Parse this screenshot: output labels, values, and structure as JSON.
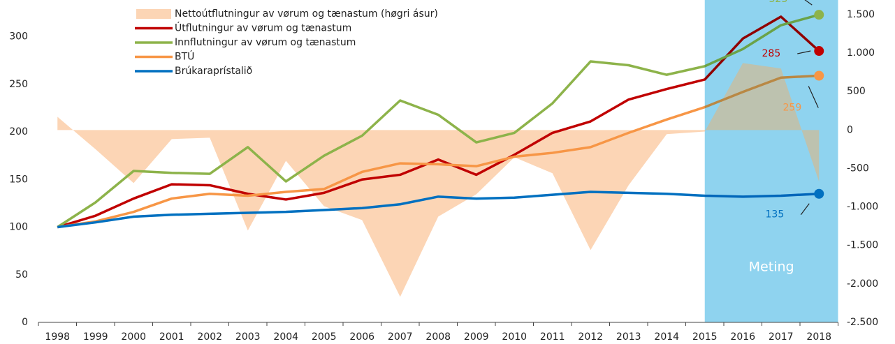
{
  "chart_data": {
    "type": "line",
    "categories": [
      "1998",
      "1999",
      "2000",
      "2001",
      "2002",
      "2003",
      "2004",
      "2005",
      "2006",
      "2007",
      "2008",
      "2009",
      "2010",
      "2011",
      "2012",
      "2013",
      "2014",
      "2015",
      "2016",
      "2017",
      "2018"
    ],
    "series": [
      {
        "name": "Nettoútflutningur av vørum og tænastum (høgri ásur)",
        "type": "area",
        "axis": "y2",
        "color": "#fcd5b5",
        "values": [
          172,
          -250,
          -690,
          -118,
          -100,
          -1306,
          -400,
          -990,
          -1170,
          -2168,
          -1125,
          -835,
          -354,
          -562,
          -1560,
          -717,
          -54,
          -20,
          870,
          800,
          -670
        ]
      },
      {
        "name": "Útflutningur av vørum og tænastum",
        "color": "#c00000",
        "values": [
          100,
          112,
          130,
          145,
          144,
          135,
          129,
          136,
          150,
          155,
          171,
          155,
          176,
          199,
          211,
          234,
          245,
          255,
          298,
          321,
          285
        ]
      },
      {
        "name": "Innflutningur av vørum og tænastum",
        "color": "#8db34a",
        "values": [
          100,
          126,
          159,
          157,
          156,
          184,
          148,
          175,
          196,
          233,
          218,
          189,
          199,
          230,
          274,
          270,
          260,
          269,
          287,
          312,
          323
        ]
      },
      {
        "name": "BTÚ",
        "color": "#f79646",
        "values": [
          100,
          106,
          116,
          130,
          135,
          133,
          137,
          140,
          158,
          167,
          166,
          164,
          174,
          178,
          184,
          199,
          213,
          226,
          242,
          257,
          259
        ]
      },
      {
        "name": "Brúkaraprístalið",
        "color": "#0070c0",
        "values": [
          100,
          105,
          111,
          113,
          114,
          115,
          116,
          118,
          120,
          124,
          132,
          130,
          131,
          134,
          137,
          136,
          135,
          133,
          132,
          133,
          135
        ]
      }
    ],
    "ylim": [
      0,
      338.5
    ],
    "yticks": [
      0,
      50,
      100,
      150,
      200,
      250,
      300
    ],
    "y2lim": [
      -2500,
      1690
    ],
    "y2ticks": [
      {
        "value": -2500,
        "label": "-2.500"
      },
      {
        "value": -2000,
        "label": "-2.000"
      },
      {
        "value": -1500,
        "label": "-1.500"
      },
      {
        "value": -1000,
        "label": "-1.000"
      },
      -500,
      0,
      500,
      {
        "value": 1000,
        "label": "1.000"
      },
      {
        "value": 1500,
        "label": "1.500"
      }
    ],
    "forecast": {
      "text": "Meting",
      "from": "2016",
      "color": "#bfe8f7"
    },
    "legend": "top-left"
  }
}
